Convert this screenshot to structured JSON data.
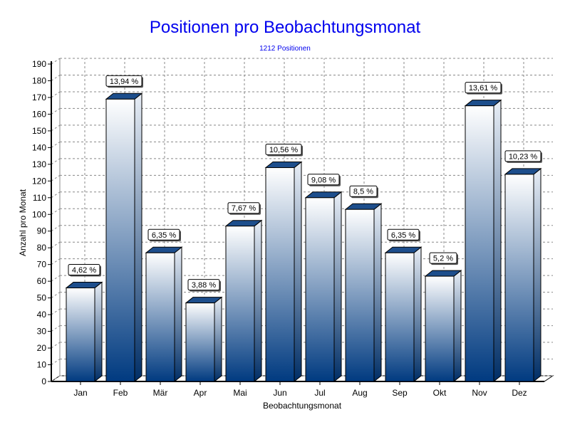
{
  "chart_data": {
    "type": "bar",
    "title": "Positionen pro Beobachtungsmonat",
    "subtitle": "1212 Positionen",
    "xlabel": "Beobachtungsmonat",
    "ylabel": "Anzahl pro Monat",
    "ylim": [
      0,
      190
    ],
    "ytick_step": 10,
    "grid": true,
    "categories": [
      "Jan",
      "Feb",
      "Mär",
      "Apr",
      "Mai",
      "Jun",
      "Jul",
      "Aug",
      "Sep",
      "Okt",
      "Nov",
      "Dez"
    ],
    "values": [
      56,
      169,
      77,
      47,
      93,
      128,
      110,
      103,
      77,
      63,
      165,
      124
    ],
    "data_labels": [
      "4,62 %",
      "13,94 %",
      "6,35 %",
      "3,88 %",
      "7,67 %",
      "10,56 %",
      "9,08 %",
      "8,5 %",
      "6,35 %",
      "5,2 %",
      "13,61 %",
      "10,23 %"
    ],
    "colors": {
      "title": "#0000ee",
      "bar_top": "#ffffff",
      "bar_bottom": "#003a80"
    }
  }
}
